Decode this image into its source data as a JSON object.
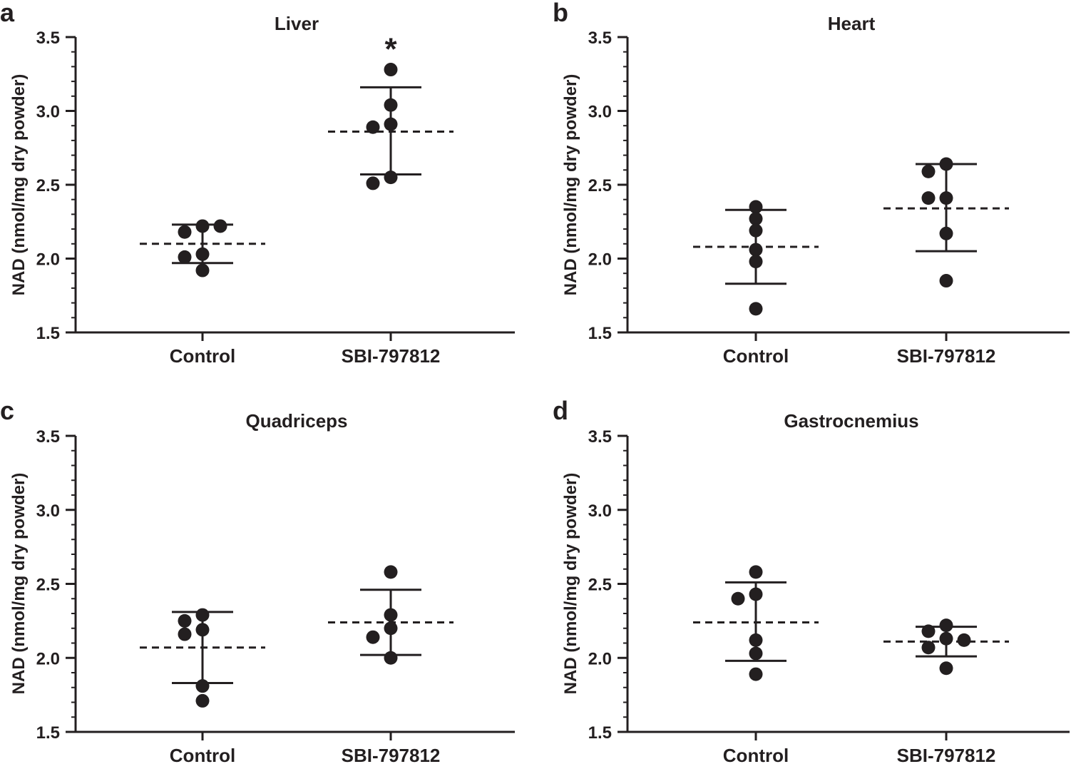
{
  "chart_data": [
    {
      "panel": "a",
      "type": "scatter",
      "title": "Liver",
      "ylabel": "NAD (nmol/mg dry powder)",
      "xlabel": "",
      "ylim": [
        1.5,
        3.5
      ],
      "yticks": [
        "1.5",
        "2.0",
        "2.5",
        "3.0",
        "3.5"
      ],
      "categories": [
        "Control",
        "SBI-797812"
      ],
      "groups": [
        {
          "name": "Control",
          "points": [
            2.22,
            2.18,
            2.22,
            2.03,
            2.01,
            1.92
          ],
          "mean": 2.1,
          "sd_low": 1.97,
          "sd_high": 2.23,
          "annotation": ""
        },
        {
          "name": "SBI-797812",
          "points": [
            3.28,
            3.04,
            2.91,
            2.89,
            2.55,
            2.51
          ],
          "mean": 2.86,
          "sd_low": 2.57,
          "sd_high": 3.16,
          "annotation": "*"
        }
      ]
    },
    {
      "panel": "b",
      "type": "scatter",
      "title": "Heart",
      "ylabel": "NAD (nmol/mg dry powder)",
      "xlabel": "",
      "ylim": [
        1.5,
        3.5
      ],
      "yticks": [
        "1.5",
        "2.0",
        "2.5",
        "3.0",
        "3.5"
      ],
      "categories": [
        "Control",
        "SBI-797812"
      ],
      "groups": [
        {
          "name": "Control",
          "points": [
            2.35,
            2.27,
            2.19,
            2.06,
            1.98,
            1.66
          ],
          "mean": 2.08,
          "sd_low": 1.83,
          "sd_high": 2.33,
          "annotation": ""
        },
        {
          "name": "SBI-797812",
          "points": [
            2.64,
            2.59,
            2.41,
            2.41,
            2.17,
            1.85
          ],
          "mean": 2.34,
          "sd_low": 2.05,
          "sd_high": 2.64,
          "annotation": ""
        }
      ]
    },
    {
      "panel": "c",
      "type": "scatter",
      "title": "Quadriceps",
      "ylabel": "NAD (nmol/mg dry powder)",
      "xlabel": "",
      "ylim": [
        1.5,
        3.5
      ],
      "yticks": [
        "1.5",
        "2.0",
        "2.5",
        "3.0",
        "3.5"
      ],
      "categories": [
        "Control",
        "SBI-797812"
      ],
      "groups": [
        {
          "name": "Control",
          "points": [
            2.29,
            2.25,
            2.19,
            2.16,
            1.81,
            1.71
          ],
          "mean": 2.07,
          "sd_low": 1.83,
          "sd_high": 2.31,
          "annotation": ""
        },
        {
          "name": "SBI-797812",
          "points": [
            2.58,
            2.29,
            2.2,
            2.14,
            2.0
          ],
          "mean": 2.24,
          "sd_low": 2.02,
          "sd_high": 2.46,
          "annotation": ""
        }
      ]
    },
    {
      "panel": "d",
      "type": "scatter",
      "title": "Gastrocnemius",
      "ylabel": "NAD (nmol/mg dry powder)",
      "xlabel": "",
      "ylim": [
        1.5,
        3.5
      ],
      "yticks": [
        "1.5",
        "2.0",
        "2.5",
        "3.0",
        "3.5"
      ],
      "categories": [
        "Control",
        "SBI-797812"
      ],
      "groups": [
        {
          "name": "Control",
          "points": [
            2.58,
            2.43,
            2.4,
            2.12,
            2.03,
            1.89
          ],
          "mean": 2.24,
          "sd_low": 1.98,
          "sd_high": 2.51,
          "annotation": ""
        },
        {
          "name": "SBI-797812",
          "points": [
            2.22,
            2.18,
            2.13,
            2.12,
            2.07,
            1.93
          ],
          "mean": 2.11,
          "sd_low": 2.01,
          "sd_high": 2.21,
          "annotation": ""
        }
      ]
    }
  ]
}
